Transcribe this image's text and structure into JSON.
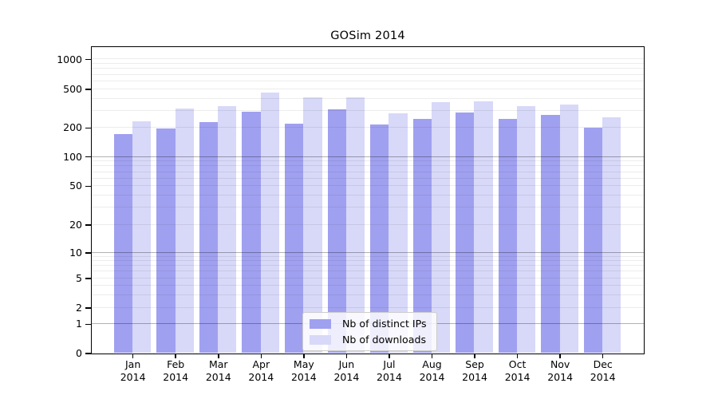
{
  "chart_data": {
    "type": "bar",
    "title": "GOSim 2014",
    "categories": [
      "Jan 2014",
      "Feb 2014",
      "Mar 2014",
      "Apr 2014",
      "May 2014",
      "Jun 2014",
      "Jul 2014",
      "Aug 2014",
      "Sep 2014",
      "Oct 2014",
      "Nov 2014",
      "Dec 2014"
    ],
    "series": [
      {
        "name": "Nb of distinct IPs",
        "color": "#a0a0f0",
        "values": [
          170,
          195,
          225,
          290,
          220,
          305,
          215,
          245,
          285,
          245,
          270,
          200
        ]
      },
      {
        "name": "Nb of downloads",
        "color": "#d8d8f8",
        "values": [
          230,
          315,
          330,
          460,
          410,
          410,
          280,
          365,
          370,
          330,
          345,
          255
        ]
      }
    ],
    "y_axis": {
      "scale": "log",
      "tick_labels": [
        0,
        1,
        2,
        5,
        10,
        20,
        50,
        100,
        200,
        500,
        1000
      ],
      "major_gridlines": [
        1,
        10,
        100
      ],
      "minor_gridlines": [
        2,
        3,
        4,
        5,
        6,
        7,
        8,
        9,
        20,
        30,
        40,
        50,
        60,
        70,
        80,
        90,
        200,
        300,
        400,
        500,
        600,
        700,
        800,
        900,
        1000
      ]
    },
    "legend": {
      "position": "inside-bottom-center"
    },
    "grid": "horizontal"
  },
  "colors": {
    "bar_distinct_ips": "#a0a0f0",
    "bar_downloads": "#d8d8f8",
    "axis": "#000000",
    "background": "#ffffff"
  }
}
